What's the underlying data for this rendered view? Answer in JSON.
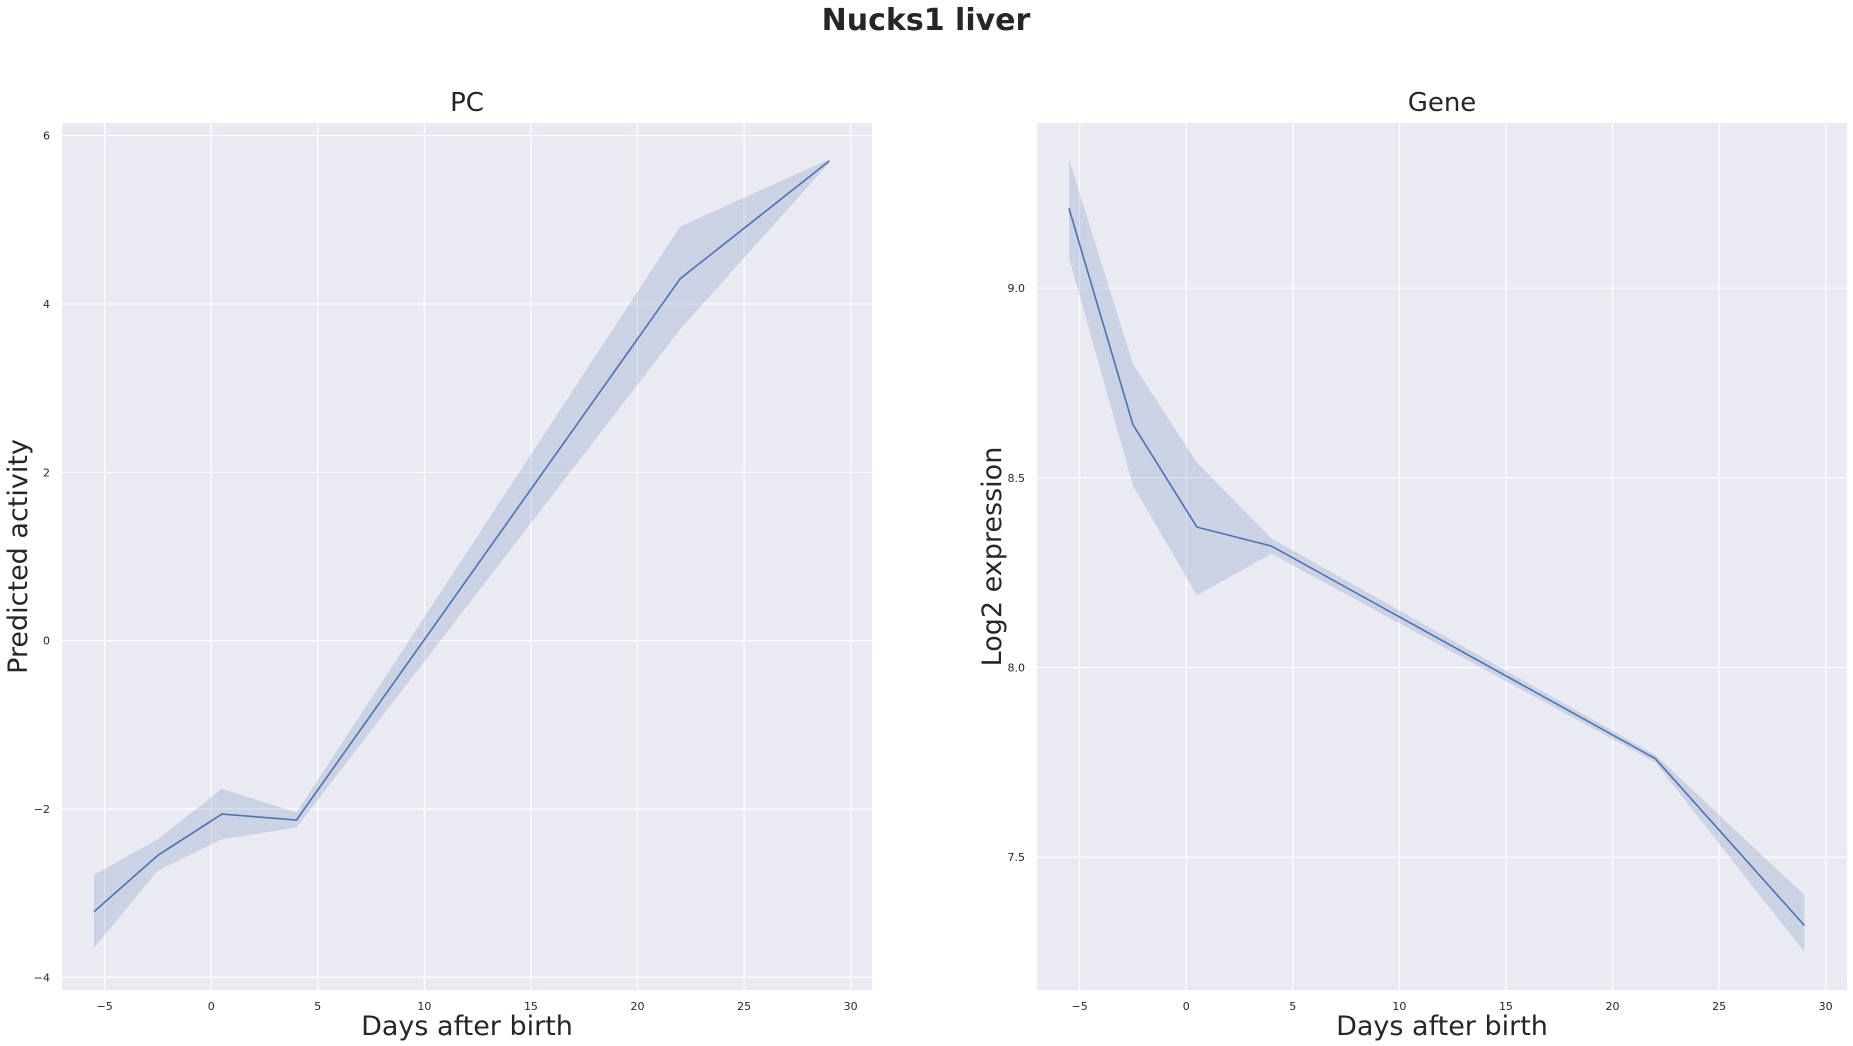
{
  "figure": {
    "suptitle": "Nucks1 liver",
    "style": {
      "axes_bg": "#eaeaf2",
      "grid": "#ffffff",
      "line": "#4c72b0",
      "band": "#4c72b0"
    }
  },
  "chart_data": [
    {
      "type": "line",
      "title": "PC",
      "xlabel": "Days after birth",
      "ylabel": "Predicted activity",
      "xlim": [
        -7,
        31
      ],
      "ylim": [
        -4.15,
        6.15
      ],
      "xticks": [
        -5,
        0,
        5,
        10,
        15,
        20,
        25,
        30
      ],
      "yticks": [
        -4,
        -2,
        0,
        2,
        4,
        6
      ],
      "xtick_labels": [
        "−5",
        "0",
        "5",
        "10",
        "15",
        "20",
        "25",
        "30"
      ],
      "ytick_labels": [
        "−4",
        "−2",
        "0",
        "2",
        "4",
        "6"
      ],
      "grid": true,
      "series": [
        {
          "x": [
            -5.5,
            -2.5,
            0.5,
            4,
            22,
            29
          ],
          "y": [
            -3.22,
            -2.55,
            -2.06,
            -2.13,
            4.3,
            5.7
          ],
          "lower": [
            -3.65,
            -2.73,
            -2.36,
            -2.22,
            3.7,
            5.68
          ],
          "upper": [
            -2.78,
            -2.36,
            -1.76,
            -2.04,
            4.92,
            5.72
          ]
        }
      ]
    },
    {
      "type": "line",
      "title": "Gene",
      "xlabel": "Days after birth",
      "ylabel": "Log2 expression",
      "xlim": [
        -7,
        31
      ],
      "ylim": [
        7.15,
        9.435
      ],
      "xticks": [
        -5,
        0,
        5,
        10,
        15,
        20,
        25,
        30
      ],
      "yticks": [
        7.5,
        8.0,
        8.5,
        9.0
      ],
      "xtick_labels": [
        "−5",
        "0",
        "5",
        "10",
        "15",
        "20",
        "25",
        "30"
      ],
      "ytick_labels": [
        "7.5",
        "8.0",
        "8.5",
        "9.0"
      ],
      "grid": true,
      "series": [
        {
          "x": [
            -5.5,
            -2.5,
            0.5,
            4,
            22,
            29
          ],
          "y": [
            9.21,
            8.64,
            8.37,
            8.32,
            7.76,
            7.32
          ],
          "lower": [
            9.08,
            8.48,
            8.19,
            8.3,
            7.75,
            7.25
          ],
          "upper": [
            9.34,
            8.8,
            8.54,
            8.34,
            7.77,
            7.4
          ]
        }
      ]
    }
  ]
}
